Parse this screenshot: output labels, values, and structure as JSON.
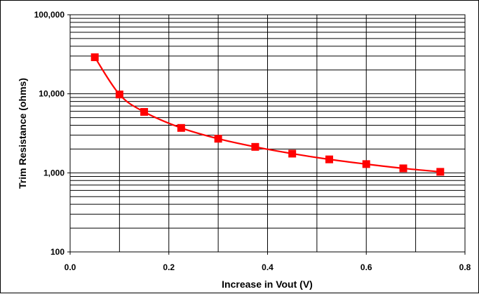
{
  "chart_data": {
    "type": "line",
    "title": "",
    "xlabel": "Increase in Vout (V)",
    "ylabel": "Trim Resistance (ohms)",
    "x_scale": "linear",
    "y_scale": "log",
    "xlim": [
      0.0,
      0.8
    ],
    "ylim": [
      100,
      100000
    ],
    "x_ticks": [
      0.0,
      0.2,
      0.4,
      0.6,
      0.8
    ],
    "x_tick_labels": [
      "0.0",
      "0.2",
      "0.4",
      "0.6",
      "0.8"
    ],
    "y_ticks": [
      100,
      1000,
      10000,
      100000
    ],
    "y_tick_labels": [
      "100",
      "1,000",
      "10,000",
      "100,000"
    ],
    "x_minor_gridlines": [
      0.1,
      0.3,
      0.5,
      0.7
    ],
    "grid": true,
    "legend": "none",
    "series": [
      {
        "color": "#ff0000",
        "marker": "square",
        "x": [
          0.05,
          0.1,
          0.15,
          0.225,
          0.3,
          0.375,
          0.45,
          0.525,
          0.6,
          0.675,
          0.75
        ],
        "y": [
          29000,
          9800,
          5900,
          3700,
          2700,
          2130,
          1750,
          1480,
          1290,
          1140,
          1030
        ]
      }
    ]
  }
}
